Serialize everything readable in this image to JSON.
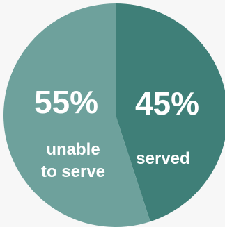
{
  "chart_data": {
    "type": "pie",
    "slices": [
      {
        "label_lines": [
          "served"
        ],
        "value": 45,
        "value_label": "45%",
        "color": "#3f7f78"
      },
      {
        "label_lines": [
          "unable",
          "to serve"
        ],
        "value": 55,
        "value_label": "55%",
        "color": "#6ea19c"
      }
    ],
    "start": "12 o'clock",
    "direction": "clockwise",
    "background": "#f7f7f7"
  }
}
